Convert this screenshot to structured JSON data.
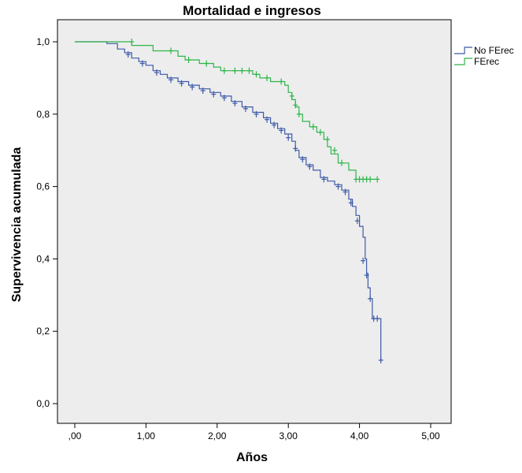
{
  "chart_data": {
    "type": "line",
    "title": "Mortalidad e ingresos",
    "xlabel": "Años",
    "ylabel": "Supervivencia acumulada",
    "xlim": [
      0,
      5
    ],
    "ylim": [
      0,
      1
    ],
    "x_ticks": [
      0,
      1,
      2,
      3,
      4,
      5
    ],
    "x_tick_labels": [
      ",00",
      "1,00",
      "2,00",
      "3,00",
      "4,00",
      "5,00"
    ],
    "y_ticks": [
      0,
      0.2,
      0.4,
      0.6,
      0.8,
      1.0
    ],
    "y_tick_labels": [
      "0,0",
      "0,2",
      "0,4",
      "0,6",
      "0,8",
      "1,0"
    ],
    "grid": false,
    "legend_position": "right",
    "background_color": "#ededed",
    "series": [
      {
        "name": "No FErec",
        "color": "#3d5aa8",
        "steps": [
          [
            0,
            1.0
          ],
          [
            0.45,
            0.995
          ],
          [
            0.6,
            0.98
          ],
          [
            0.7,
            0.97
          ],
          [
            0.8,
            0.955
          ],
          [
            0.9,
            0.945
          ],
          [
            1.0,
            0.935
          ],
          [
            1.1,
            0.92
          ],
          [
            1.2,
            0.91
          ],
          [
            1.3,
            0.9
          ],
          [
            1.45,
            0.89
          ],
          [
            1.6,
            0.88
          ],
          [
            1.75,
            0.87
          ],
          [
            1.9,
            0.86
          ],
          [
            2.05,
            0.85
          ],
          [
            2.2,
            0.835
          ],
          [
            2.35,
            0.82
          ],
          [
            2.5,
            0.805
          ],
          [
            2.65,
            0.79
          ],
          [
            2.75,
            0.775
          ],
          [
            2.85,
            0.76
          ],
          [
            2.95,
            0.745
          ],
          [
            3.05,
            0.725
          ],
          [
            3.1,
            0.7
          ],
          [
            3.15,
            0.68
          ],
          [
            3.25,
            0.66
          ],
          [
            3.35,
            0.645
          ],
          [
            3.45,
            0.625
          ],
          [
            3.55,
            0.615
          ],
          [
            3.65,
            0.605
          ],
          [
            3.75,
            0.59
          ],
          [
            3.85,
            0.565
          ],
          [
            3.9,
            0.545
          ],
          [
            3.95,
            0.52
          ],
          [
            4.0,
            0.49
          ],
          [
            4.05,
            0.46
          ],
          [
            4.08,
            0.4
          ],
          [
            4.1,
            0.36
          ],
          [
            4.12,
            0.32
          ],
          [
            4.15,
            0.29
          ],
          [
            4.18,
            0.235
          ],
          [
            4.3,
            0.235
          ],
          [
            4.3,
            0.12
          ]
        ],
        "end_x": 4.32,
        "censored": [
          [
            0.75,
            0.965
          ],
          [
            0.95,
            0.94
          ],
          [
            1.15,
            0.915
          ],
          [
            1.35,
            0.895
          ],
          [
            1.5,
            0.885
          ],
          [
            1.65,
            0.875
          ],
          [
            1.8,
            0.865
          ],
          [
            1.95,
            0.855
          ],
          [
            2.1,
            0.845
          ],
          [
            2.25,
            0.83
          ],
          [
            2.4,
            0.815
          ],
          [
            2.55,
            0.8
          ],
          [
            2.7,
            0.785
          ],
          [
            2.8,
            0.77
          ],
          [
            2.9,
            0.755
          ],
          [
            3.0,
            0.735
          ],
          [
            3.1,
            0.705
          ],
          [
            3.2,
            0.675
          ],
          [
            3.3,
            0.655
          ],
          [
            3.5,
            0.62
          ],
          [
            3.7,
            0.6
          ],
          [
            3.8,
            0.585
          ],
          [
            3.88,
            0.555
          ],
          [
            3.97,
            0.505
          ],
          [
            4.05,
            0.395
          ],
          [
            4.1,
            0.355
          ],
          [
            4.15,
            0.29
          ],
          [
            4.2,
            0.235
          ],
          [
            4.25,
            0.235
          ],
          [
            4.3,
            0.12
          ]
        ]
      },
      {
        "name": "FErec",
        "color": "#2fb54a",
        "steps": [
          [
            0,
            1.0
          ],
          [
            0.8,
            0.99
          ],
          [
            1.1,
            0.975
          ],
          [
            1.45,
            0.96
          ],
          [
            1.55,
            0.95
          ],
          [
            1.75,
            0.94
          ],
          [
            1.95,
            0.93
          ],
          [
            2.05,
            0.92
          ],
          [
            2.5,
            0.91
          ],
          [
            2.6,
            0.9
          ],
          [
            2.75,
            0.89
          ],
          [
            2.95,
            0.88
          ],
          [
            3.0,
            0.86
          ],
          [
            3.05,
            0.84
          ],
          [
            3.1,
            0.82
          ],
          [
            3.15,
            0.8
          ],
          [
            3.2,
            0.78
          ],
          [
            3.3,
            0.765
          ],
          [
            3.4,
            0.75
          ],
          [
            3.5,
            0.73
          ],
          [
            3.55,
            0.71
          ],
          [
            3.6,
            0.69
          ],
          [
            3.7,
            0.665
          ],
          [
            3.85,
            0.645
          ],
          [
            3.95,
            0.62
          ]
        ],
        "end_x": 4.25,
        "censored": [
          [
            0.8,
            1.0
          ],
          [
            1.35,
            0.975
          ],
          [
            1.6,
            0.95
          ],
          [
            1.85,
            0.94
          ],
          [
            2.1,
            0.92
          ],
          [
            2.25,
            0.92
          ],
          [
            2.35,
            0.92
          ],
          [
            2.45,
            0.92
          ],
          [
            2.55,
            0.91
          ],
          [
            2.7,
            0.9
          ],
          [
            2.9,
            0.89
          ],
          [
            3.05,
            0.85
          ],
          [
            3.1,
            0.825
          ],
          [
            3.15,
            0.8
          ],
          [
            3.35,
            0.765
          ],
          [
            3.45,
            0.75
          ],
          [
            3.55,
            0.73
          ],
          [
            3.65,
            0.7
          ],
          [
            3.75,
            0.665
          ],
          [
            3.95,
            0.62
          ],
          [
            4.0,
            0.62
          ],
          [
            4.05,
            0.62
          ],
          [
            4.1,
            0.62
          ],
          [
            4.15,
            0.62
          ],
          [
            4.25,
            0.62
          ]
        ]
      }
    ]
  }
}
